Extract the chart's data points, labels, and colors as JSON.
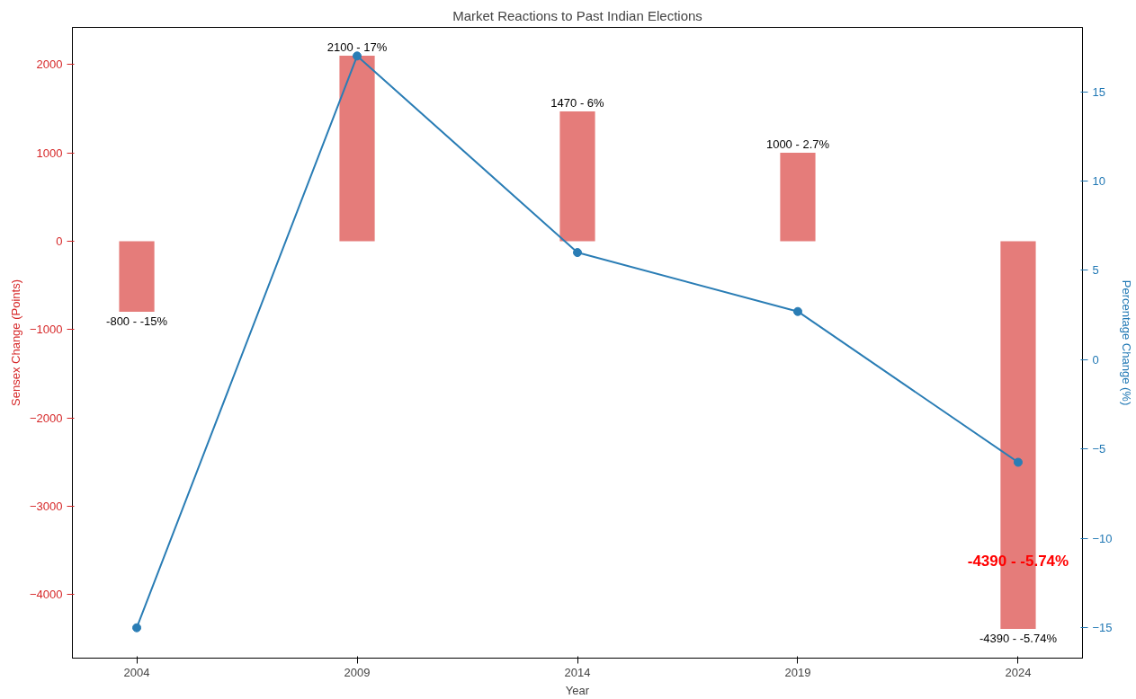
{
  "chart_data": {
    "type": "bar",
    "title": "Market Reactions to Past Indian Elections",
    "xlabel": "Year",
    "ylabel": "Sensex Change (Points)",
    "y2label": "Percentage Change (%)",
    "x": [
      2004,
      2009,
      2014,
      2019,
      2024
    ],
    "xlim": [
      2002.54,
      2025.46
    ],
    "xticks": [
      2004,
      2009,
      2014,
      2019,
      2024
    ],
    "ylim": [
      -4720,
      2420
    ],
    "yticks": [
      -4000,
      -3000,
      -2000,
      -1000,
      0,
      1000,
      2000
    ],
    "y2lim": [
      -16.7,
      18.6
    ],
    "y2ticks": [
      -15,
      -10,
      -5,
      0,
      5,
      10,
      15
    ],
    "series": [
      {
        "color": "#e57c7a",
        "values": [
          -800,
          2100,
          1470,
          1000,
          -4390
        ],
        "value_labels": [
          "-800 - -15%",
          "2100 - 17%",
          "1470 - 6%",
          "1000 - 2.7%",
          "-4390 - -5.74%"
        ]
      },
      {
        "type": "line",
        "axis": "y2",
        "color": "#2a7db5",
        "marker": "circle",
        "values": [
          -15,
          17,
          6,
          2.7,
          -5.74
        ]
      }
    ],
    "annotations": [
      "-4390 - -5.74%"
    ],
    "grid": false
  }
}
